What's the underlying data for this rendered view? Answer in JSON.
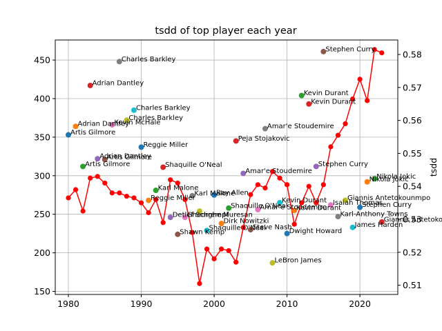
{
  "chart_data": {
    "type": "line+scatter",
    "title": "tsdd of top player each year",
    "xlabel": "",
    "ylabel_left": "",
    "ylabel_right": "tsdd",
    "x_ticks": [
      1980,
      1990,
      2000,
      2010,
      2020
    ],
    "y_left_ticks": [
      150,
      200,
      250,
      300,
      350,
      400,
      450
    ],
    "y_right_ticks": [
      0.51,
      0.52,
      0.53,
      0.54,
      0.55,
      0.56,
      0.57,
      0.58
    ],
    "xlim": [
      1978.2,
      2025.2
    ],
    "y_left_lim": [
      146,
      476
    ],
    "y_right_lim": [
      0.5072,
      0.5844
    ],
    "grid": true,
    "line_series": {
      "name": "tsdd",
      "axis": "right",
      "color": "#ff0000",
      "x": [
        1980,
        1981,
        1982,
        1983,
        1984,
        1985,
        1986,
        1987,
        1988,
        1989,
        1990,
        1991,
        1992,
        1993,
        1994,
        1995,
        1996,
        1997,
        1998,
        1999,
        2000,
        2001,
        2002,
        2003,
        2004,
        2005,
        2006,
        2007,
        2008,
        2009,
        2010,
        2011,
        2012,
        2013,
        2014,
        2015,
        2016,
        2017,
        2018,
        2019,
        2020,
        2021,
        2022,
        2023
      ],
      "y": [
        0.5365,
        0.539,
        0.5325,
        0.5425,
        0.543,
        0.541,
        0.538,
        0.538,
        0.537,
        0.5365,
        0.535,
        0.532,
        0.536,
        0.529,
        0.542,
        0.541,
        0.536,
        0.526,
        0.5105,
        0.521,
        0.518,
        0.521,
        0.5205,
        0.517,
        0.5275,
        0.5375,
        0.5405,
        0.5395,
        0.5445,
        0.5425,
        0.5405,
        0.5285,
        0.535,
        0.54,
        0.535,
        0.5405,
        0.552,
        0.5555,
        0.559,
        0.5665,
        0.5725,
        0.566,
        0.5815,
        0.5805
      ]
    },
    "scatter_points": [
      {
        "x": 1980,
        "y": 353,
        "label": "Artis Gilmore",
        "color": "#1f77b4"
      },
      {
        "x": 1981,
        "y": 364,
        "label": "Adrian Dantley",
        "color": "#ff7f0e"
      },
      {
        "x": 1982,
        "y": 312,
        "label": "Artis Gilmore",
        "color": "#2ca02c"
      },
      {
        "x": 1983,
        "y": 417,
        "label": "Adrian Dantley",
        "color": "#d62728"
      },
      {
        "x": 1984,
        "y": 322,
        "label": "Adrian Dantley",
        "color": "#9467bd"
      },
      {
        "x": 1985,
        "y": 321,
        "label": "Artis Gilmore",
        "color": "#8c564b"
      },
      {
        "x": 1986,
        "y": 366,
        "label": "Kevin McHale",
        "color": "#e377c2"
      },
      {
        "x": 1987,
        "y": 448,
        "label": "Charles Barkley",
        "color": "#7f7f7f"
      },
      {
        "x": 1988,
        "y": 372,
        "label": "Charles Barkley",
        "color": "#bcbd22"
      },
      {
        "x": 1989,
        "y": 385,
        "label": "Charles Barkley",
        "color": "#17becf"
      },
      {
        "x": 1990,
        "y": 337,
        "label": "Reggie Miller",
        "color": "#1f77b4"
      },
      {
        "x": 1991,
        "y": 268,
        "label": "Reggie Miller",
        "color": "#ff7f0e"
      },
      {
        "x": 1992,
        "y": 281,
        "label": "Karl Malone",
        "color": "#2ca02c"
      },
      {
        "x": 1993,
        "y": 311,
        "label": "Shaquille O'Neal",
        "color": "#d62728"
      },
      {
        "x": 1994,
        "y": 246,
        "label": "Detlef Schrempf",
        "color": "#9467bd"
      },
      {
        "x": 1995,
        "y": 224,
        "label": "Shawn Kemp",
        "color": "#8c564b"
      },
      {
        "x": 1996,
        "y": 246,
        "label": "Gheorghe Muresan",
        "color": "#e377c2"
      },
      {
        "x": 1997,
        "y": 274,
        "label": "Karl Malone",
        "color": "#7f7f7f"
      },
      {
        "x": 1998,
        "y": 254,
        "label": "",
        "color": "#bcbd22"
      },
      {
        "x": 1999,
        "y": 229,
        "label": "Shaquille O'Neal",
        "color": "#17becf"
      },
      {
        "x": 2000,
        "y": 275,
        "label": "Ray Allen",
        "color": "#1f77b4"
      },
      {
        "x": 2001,
        "y": 238,
        "label": "Dirk Nowitzki",
        "color": "#ff7f0e"
      },
      {
        "x": 2002,
        "y": 258,
        "label": "Shaquille O'Neal",
        "color": "#2ca02c"
      },
      {
        "x": 2003,
        "y": 345,
        "label": "Peja Stojakovic",
        "color": "#d62728"
      },
      {
        "x": 2004,
        "y": 303,
        "label": "Amar'e Stoudemire",
        "color": "#9467bd"
      },
      {
        "x": 2005,
        "y": 230,
        "label": "Steve Nash",
        "color": "#8c564b"
      },
      {
        "x": 2006,
        "y": 256,
        "label": "Amar'e Stoudemire",
        "color": "#e377c2"
      },
      {
        "x": 2007,
        "y": 361,
        "label": "Amar'e Stoudemire",
        "color": "#7f7f7f"
      },
      {
        "x": 2008,
        "y": 187,
        "label": "LeBron James",
        "color": "#bcbd22"
      },
      {
        "x": 2009,
        "y": 265,
        "label": "Kevin Durant",
        "color": "#17becf"
      },
      {
        "x": 2010,
        "y": 225,
        "label": "Dwight Howard",
        "color": "#1f77b4"
      },
      {
        "x": 2011,
        "y": 255,
        "label": "Kevin Durant",
        "color": "#ff7f0e"
      },
      {
        "x": 2012,
        "y": 404,
        "label": "Kevin Durant",
        "color": "#2ca02c"
      },
      {
        "x": 2013,
        "y": 393,
        "label": "Kevin Durant",
        "color": "#d62728"
      },
      {
        "x": 2014,
        "y": 312,
        "label": "Stephen Curry",
        "color": "#9467bd"
      },
      {
        "x": 2015,
        "y": 461,
        "label": "Stephen Curry",
        "color": "#8c564b"
      },
      {
        "x": 2016,
        "y": 262,
        "label": "Isaiah Thomas",
        "color": "#e377c2"
      },
      {
        "x": 2017,
        "y": 247,
        "label": "Karl-Anthony Towns",
        "color": "#7f7f7f"
      },
      {
        "x": 2018,
        "y": 268,
        "label": "Giannis Antetokounmpo",
        "color": "#bcbd22"
      },
      {
        "x": 2019,
        "y": 233,
        "label": "James Harden",
        "color": "#17becf"
      },
      {
        "x": 2020,
        "y": 259,
        "label": "Stephen Curry",
        "color": "#1f77b4"
      },
      {
        "x": 2021,
        "y": 292,
        "label": "Nikola Jokic",
        "color": "#ff7f0e"
      },
      {
        "x": 2022,
        "y": 296,
        "label": "Nikola Jokic",
        "color": "#2ca02c"
      },
      {
        "x": 2023,
        "y": 240,
        "label": "Giannis Antetokounmpo",
        "color": "#d62728"
      }
    ]
  }
}
